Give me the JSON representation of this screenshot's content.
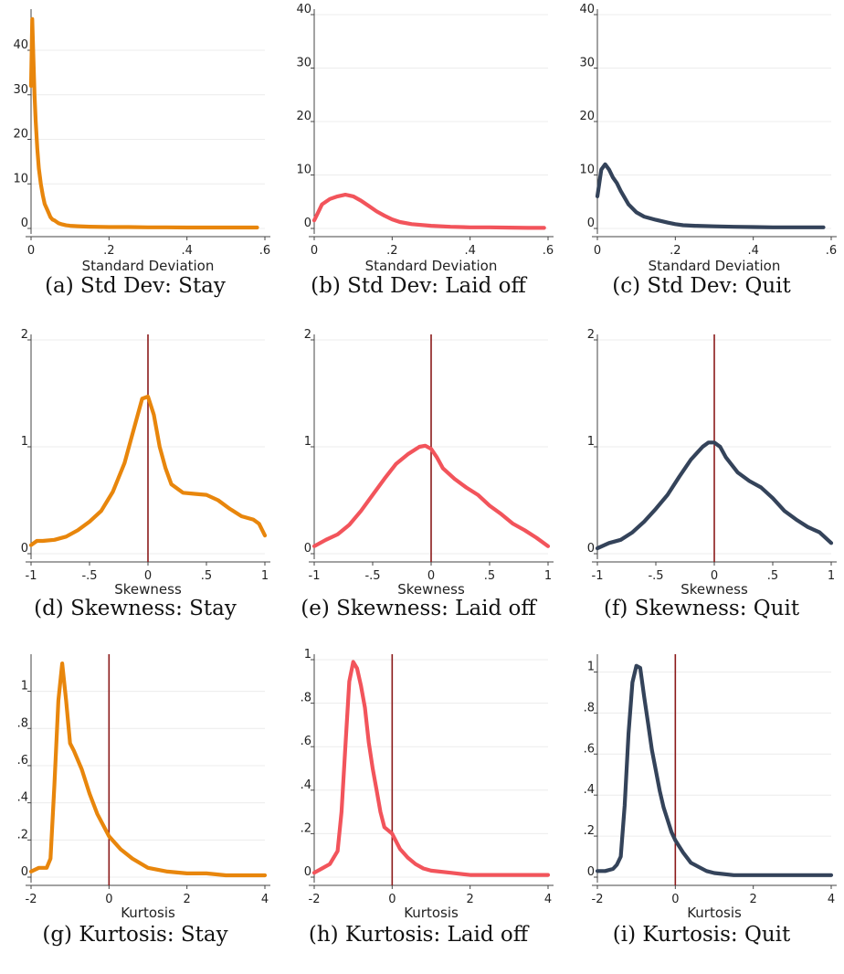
{
  "chart_data": [
    {
      "type": "line",
      "caption": "(a) Std Dev: Stay",
      "xlabel": "Standard Deviation",
      "xlim": [
        0,
        0.6
      ],
      "ylim": [
        0,
        48
      ],
      "x_ticks": [
        0,
        0.2,
        0.4,
        0.6
      ],
      "x_tick_labels": [
        "0",
        ".2",
        ".4",
        ".6"
      ],
      "y_ticks": [
        0,
        10,
        20,
        30,
        40
      ],
      "y_tick_labels": [
        "0",
        "10",
        "20",
        "30",
        "40"
      ],
      "color": "#e8860c",
      "ref_line": null,
      "x": [
        0,
        0.003,
        0.006,
        0.009,
        0.012,
        0.016,
        0.02,
        0.025,
        0.03,
        0.035,
        0.04,
        0.045,
        0.05,
        0.055,
        0.06,
        0.07,
        0.08,
        0.09,
        0.1,
        0.12,
        0.15,
        0.2,
        0.25,
        0.3,
        0.35,
        0.4,
        0.45,
        0.5,
        0.55,
        0.58
      ],
      "y": [
        32,
        47,
        38,
        30,
        24,
        18,
        13.5,
        10,
        7.5,
        5.5,
        4.5,
        3.5,
        2.5,
        2,
        1.8,
        1.2,
        0.9,
        0.7,
        0.6,
        0.5,
        0.4,
        0.3,
        0.3,
        0.25,
        0.25,
        0.2,
        0.2,
        0.2,
        0.2,
        0.2
      ]
    },
    {
      "type": "line",
      "caption": "(b) Std Dev: Laid off",
      "xlabel": "Standard Deviation",
      "xlim": [
        0,
        0.6
      ],
      "ylim": [
        0,
        40
      ],
      "x_ticks": [
        0,
        0.2,
        0.4,
        0.6
      ],
      "x_tick_labels": [
        "0",
        ".2",
        ".4",
        ".6"
      ],
      "y_ticks": [
        0,
        10,
        20,
        30,
        40
      ],
      "y_tick_labels": [
        "0",
        "10",
        "20",
        "30",
        "40"
      ],
      "color": "#f2545b",
      "ref_line": null,
      "x": [
        0,
        0.01,
        0.02,
        0.04,
        0.06,
        0.08,
        0.1,
        0.12,
        0.14,
        0.16,
        0.18,
        0.2,
        0.22,
        0.25,
        0.3,
        0.35,
        0.4,
        0.45,
        0.5,
        0.55,
        0.59
      ],
      "y": [
        1.5,
        3,
        4.5,
        5.5,
        6,
        6.3,
        6,
        5.2,
        4.2,
        3.2,
        2.4,
        1.7,
        1.2,
        0.8,
        0.5,
        0.3,
        0.2,
        0.2,
        0.15,
        0.1,
        0.1
      ]
    },
    {
      "type": "line",
      "caption": "(c) Std Dev: Quit",
      "xlabel": "Standard Deviation",
      "xlim": [
        0,
        0.6
      ],
      "ylim": [
        0,
        40
      ],
      "x_ticks": [
        0,
        0.2,
        0.4,
        0.6
      ],
      "x_tick_labels": [
        "0",
        ".2",
        ".4",
        ".6"
      ],
      "y_ticks": [
        0,
        10,
        20,
        30,
        40
      ],
      "y_tick_labels": [
        "0",
        "10",
        "20",
        "30",
        "40"
      ],
      "color": "#34435a",
      "ref_line": null,
      "x": [
        0,
        0.01,
        0.02,
        0.03,
        0.04,
        0.05,
        0.06,
        0.08,
        0.1,
        0.12,
        0.15,
        0.18,
        0.2,
        0.22,
        0.25,
        0.3,
        0.35,
        0.4,
        0.45,
        0.5,
        0.55,
        0.58
      ],
      "y": [
        6,
        11,
        12,
        11,
        9.5,
        8.5,
        7,
        4.5,
        3,
        2.2,
        1.6,
        1.1,
        0.8,
        0.6,
        0.5,
        0.4,
        0.3,
        0.25,
        0.2,
        0.2,
        0.2,
        0.2
      ]
    },
    {
      "type": "line",
      "caption": "(d) Skewness: Stay",
      "xlabel": "Skewness",
      "xlim": [
        -1,
        1
      ],
      "ylim": [
        0,
        2
      ],
      "x_ticks": [
        -1,
        -0.5,
        0,
        0.5,
        1
      ],
      "x_tick_labels": [
        "-1",
        "-.5",
        "0",
        ".5",
        "1"
      ],
      "y_ticks": [
        0,
        1,
        2
      ],
      "y_tick_labels": [
        "0",
        "1",
        "2"
      ],
      "color": "#e8860c",
      "ref_line": 0,
      "x": [
        -1,
        -0.95,
        -0.9,
        -0.8,
        -0.7,
        -0.6,
        -0.5,
        -0.4,
        -0.3,
        -0.2,
        -0.15,
        -0.1,
        -0.05,
        0,
        0.05,
        0.1,
        0.15,
        0.2,
        0.3,
        0.4,
        0.5,
        0.6,
        0.7,
        0.8,
        0.9,
        0.95,
        1
      ],
      "y": [
        0.08,
        0.12,
        0.12,
        0.13,
        0.16,
        0.22,
        0.3,
        0.4,
        0.58,
        0.85,
        1.05,
        1.25,
        1.45,
        1.47,
        1.3,
        1.0,
        0.8,
        0.65,
        0.57,
        0.56,
        0.55,
        0.5,
        0.42,
        0.35,
        0.32,
        0.28,
        0.17
      ]
    },
    {
      "type": "line",
      "caption": "(e) Skewness: Laid off",
      "xlabel": "Skewness",
      "xlim": [
        -1,
        1
      ],
      "ylim": [
        0,
        2
      ],
      "x_ticks": [
        -1,
        -0.5,
        0,
        0.5,
        1
      ],
      "x_tick_labels": [
        "-1",
        "-.5",
        "0",
        ".5",
        "1"
      ],
      "y_ticks": [
        0,
        1,
        2
      ],
      "y_tick_labels": [
        "0",
        "1",
        "2"
      ],
      "color": "#f2545b",
      "ref_line": 0,
      "x": [
        -1,
        -0.9,
        -0.8,
        -0.7,
        -0.6,
        -0.5,
        -0.4,
        -0.3,
        -0.2,
        -0.1,
        -0.05,
        0,
        0.05,
        0.1,
        0.2,
        0.3,
        0.4,
        0.5,
        0.6,
        0.7,
        0.8,
        0.9,
        1
      ],
      "y": [
        0.07,
        0.13,
        0.18,
        0.27,
        0.4,
        0.55,
        0.7,
        0.84,
        0.93,
        1.0,
        1.01,
        0.98,
        0.9,
        0.8,
        0.7,
        0.62,
        0.55,
        0.45,
        0.37,
        0.28,
        0.22,
        0.15,
        0.07
      ]
    },
    {
      "type": "line",
      "caption": "(f) Skewness: Quit",
      "xlabel": "Skewness",
      "xlim": [
        -1,
        1
      ],
      "ylim": [
        0,
        2
      ],
      "x_ticks": [
        -1,
        -0.5,
        0,
        0.5,
        1
      ],
      "x_tick_labels": [
        "-1",
        "-.5",
        "0",
        ".5",
        "1"
      ],
      "y_ticks": [
        0,
        1,
        2
      ],
      "y_tick_labels": [
        "0",
        "1",
        "2"
      ],
      "color": "#34435a",
      "ref_line": 0,
      "x": [
        -1,
        -0.9,
        -0.8,
        -0.7,
        -0.6,
        -0.5,
        -0.4,
        -0.3,
        -0.2,
        -0.1,
        -0.05,
        0,
        0.05,
        0.1,
        0.2,
        0.3,
        0.4,
        0.5,
        0.6,
        0.7,
        0.8,
        0.9,
        1
      ],
      "y": [
        0.05,
        0.1,
        0.13,
        0.2,
        0.3,
        0.42,
        0.55,
        0.72,
        0.88,
        1.0,
        1.04,
        1.04,
        1.0,
        0.9,
        0.76,
        0.68,
        0.62,
        0.52,
        0.4,
        0.32,
        0.25,
        0.2,
        0.1
      ]
    },
    {
      "type": "line",
      "caption": "(g) Kurtosis: Stay",
      "xlabel": "Kurtosis",
      "xlim": [
        -2,
        4
      ],
      "ylim": [
        0,
        1.17
      ],
      "x_ticks": [
        -2,
        0,
        2,
        4
      ],
      "x_tick_labels": [
        "-2",
        "0",
        "2",
        "4"
      ],
      "y_ticks": [
        0,
        0.2,
        0.4,
        0.6,
        0.8,
        1
      ],
      "y_tick_labels": [
        "0",
        ".2",
        ".4",
        ".6",
        ".8",
        "1"
      ],
      "color": "#e8860c",
      "ref_line": 0,
      "x": [
        -2,
        -1.8,
        -1.6,
        -1.5,
        -1.4,
        -1.3,
        -1.2,
        -1.1,
        -1.0,
        -0.9,
        -0.7,
        -0.5,
        -0.3,
        -0.1,
        0,
        0.3,
        0.6,
        1.0,
        1.5,
        2.0,
        2.5,
        3.0,
        3.5,
        4.0
      ],
      "y": [
        0.03,
        0.05,
        0.05,
        0.1,
        0.5,
        0.95,
        1.15,
        0.95,
        0.72,
        0.68,
        0.58,
        0.45,
        0.34,
        0.26,
        0.22,
        0.15,
        0.1,
        0.05,
        0.03,
        0.02,
        0.02,
        0.01,
        0.01,
        0.01
      ]
    },
    {
      "type": "line",
      "caption": "(h) Kurtosis: Laid off",
      "xlabel": "Kurtosis",
      "xlim": [
        -2,
        4
      ],
      "ylim": [
        0,
        1
      ],
      "x_ticks": [
        -2,
        0,
        2,
        4
      ],
      "x_tick_labels": [
        "-2",
        "0",
        "2",
        "4"
      ],
      "y_ticks": [
        0,
        0.2,
        0.4,
        0.6,
        0.8,
        1
      ],
      "y_tick_labels": [
        "0",
        ".2",
        ".4",
        ".6",
        ".8",
        "1"
      ],
      "color": "#f2545b",
      "ref_line": 0,
      "x": [
        -2,
        -1.8,
        -1.6,
        -1.4,
        -1.3,
        -1.2,
        -1.1,
        -1.0,
        -0.9,
        -0.8,
        -0.7,
        -0.6,
        -0.5,
        -0.4,
        -0.3,
        -0.2,
        0,
        0.2,
        0.4,
        0.6,
        0.8,
        1.0,
        1.5,
        2.0,
        2.5,
        3.0,
        3.5,
        4.0
      ],
      "y": [
        0.02,
        0.04,
        0.06,
        0.12,
        0.3,
        0.6,
        0.9,
        0.99,
        0.96,
        0.88,
        0.78,
        0.62,
        0.5,
        0.4,
        0.3,
        0.23,
        0.2,
        0.13,
        0.09,
        0.06,
        0.04,
        0.03,
        0.02,
        0.01,
        0.01,
        0.01,
        0.01,
        0.01
      ]
    },
    {
      "type": "line",
      "caption": "(i) Kurtosis: Quit",
      "xlabel": "Kurtosis",
      "xlim": [
        -2,
        4
      ],
      "ylim": [
        0,
        1.06
      ],
      "x_ticks": [
        -2,
        0,
        2,
        4
      ],
      "x_tick_labels": [
        "-2",
        "0",
        "2",
        "4"
      ],
      "y_ticks": [
        0,
        0.2,
        0.4,
        0.6,
        0.8,
        1
      ],
      "y_tick_labels": [
        "0",
        ".2",
        ".4",
        ".6",
        ".8",
        "1"
      ],
      "color": "#34435a",
      "ref_line": 0,
      "x": [
        -2,
        -1.8,
        -1.6,
        -1.5,
        -1.4,
        -1.3,
        -1.2,
        -1.1,
        -1.0,
        -0.9,
        -0.8,
        -0.7,
        -0.6,
        -0.5,
        -0.4,
        -0.3,
        -0.2,
        -0.1,
        0,
        0.2,
        0.4,
        0.6,
        0.8,
        1.0,
        1.5,
        2.0,
        2.5,
        3.0,
        3.5,
        4.0
      ],
      "y": [
        0.03,
        0.03,
        0.04,
        0.06,
        0.1,
        0.35,
        0.7,
        0.95,
        1.03,
        1.02,
        0.88,
        0.75,
        0.62,
        0.52,
        0.42,
        0.34,
        0.28,
        0.22,
        0.18,
        0.12,
        0.07,
        0.05,
        0.03,
        0.02,
        0.01,
        0.01,
        0.01,
        0.01,
        0.01,
        0.01
      ]
    }
  ]
}
